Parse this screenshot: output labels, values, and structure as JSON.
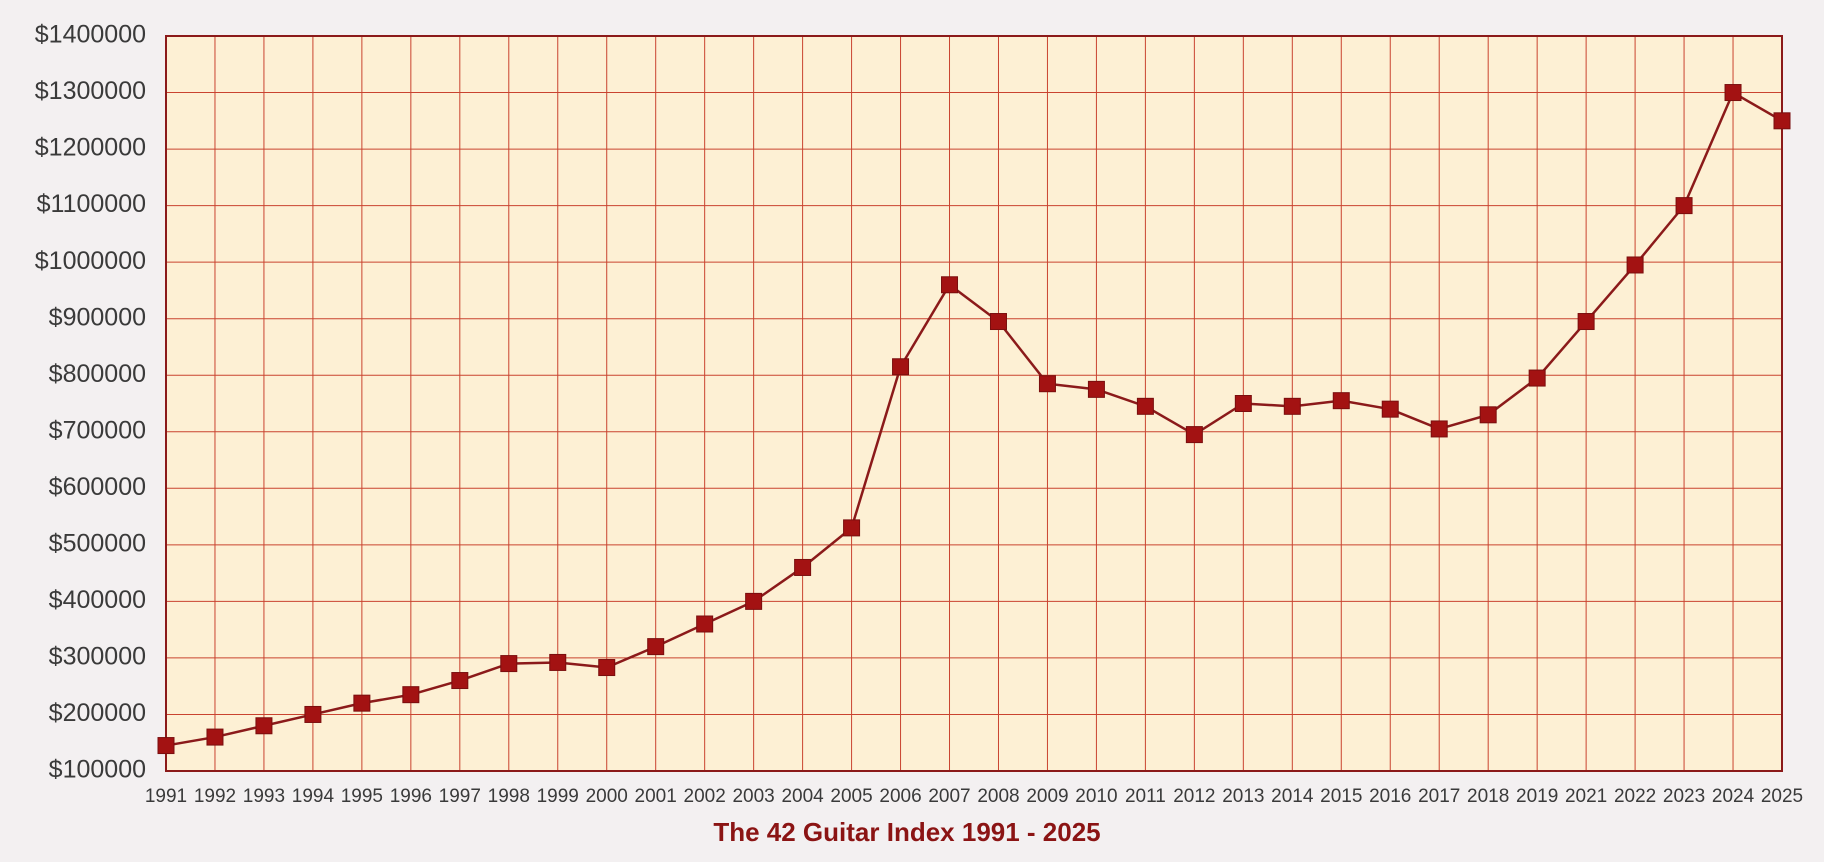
{
  "chart_data": {
    "type": "line",
    "title": "The 42 Guitar Index 1991 - 2025",
    "categories": [
      "1991",
      "1992",
      "1993",
      "1994",
      "1995",
      "1996",
      "1997",
      "1998",
      "1999",
      "2000",
      "2001",
      "2002",
      "2003",
      "2004",
      "2005",
      "2006",
      "2007",
      "2008",
      "2009",
      "2010",
      "2011",
      "2012",
      "2013",
      "2014",
      "2015",
      "2016",
      "2017",
      "2018",
      "2019",
      "2021",
      "2022",
      "2023",
      "2024",
      "2025"
    ],
    "values": [
      145000,
      160000,
      180000,
      200000,
      220000,
      235000,
      260000,
      290000,
      292000,
      283000,
      320000,
      360000,
      400000,
      460000,
      530000,
      815000,
      960000,
      895000,
      785000,
      775000,
      745000,
      695000,
      750000,
      745000,
      755000,
      740000,
      705000,
      730000,
      795000,
      895000,
      995000,
      1100000,
      1300000,
      1250000
    ],
    "color": "#a31212",
    "ylim": [
      100000,
      1400000
    ],
    "yticks": [
      {
        "value": 100000,
        "label": "$100000"
      },
      {
        "value": 200000,
        "label": "$200000"
      },
      {
        "value": 300000,
        "label": "$300000"
      },
      {
        "value": 400000,
        "label": "$400000"
      },
      {
        "value": 500000,
        "label": "$500000"
      },
      {
        "value": 600000,
        "label": "$600000"
      },
      {
        "value": 700000,
        "label": "$700000"
      },
      {
        "value": 800000,
        "label": "$800000"
      },
      {
        "value": 900000,
        "label": "$900000"
      },
      {
        "value": 1000000,
        "label": "$1000000"
      },
      {
        "value": 1100000,
        "label": "$1100000"
      },
      {
        "value": 1200000,
        "label": "$1200000"
      },
      {
        "value": 1300000,
        "label": "$1300000"
      },
      {
        "value": 1400000,
        "label": "$1400000"
      }
    ],
    "grid": true
  }
}
